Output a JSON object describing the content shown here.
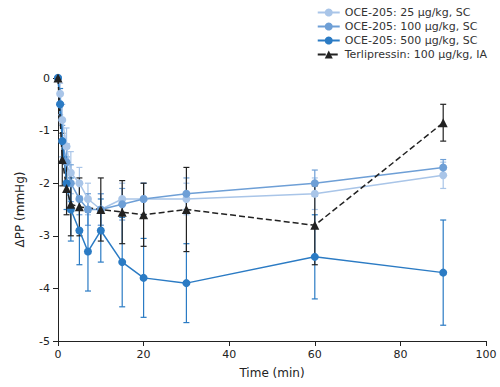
{
  "chart_data": {
    "type": "line",
    "x_label": "Time (min)",
    "y_label": "ΔPP (mmHg)",
    "xlim": [
      0,
      100
    ],
    "xticks": [
      0,
      20,
      40,
      60,
      80,
      100
    ],
    "ylim": [
      -5,
      0
    ],
    "yticks": [
      -5,
      -4,
      -3,
      -2,
      -1,
      0
    ],
    "grid": false,
    "legend": "top-right",
    "series": [
      {
        "name": "OCE-205: 25 µg/kg, SC",
        "color": "#a9c5e8",
        "marker": "circle",
        "line_style": "solid",
        "x": [
          0,
          0.5,
          1,
          2,
          3,
          5,
          7,
          10,
          15,
          20,
          30,
          60,
          90
        ],
        "values": [
          0,
          -0.3,
          -0.8,
          -1.3,
          -1.8,
          -2.0,
          -2.3,
          -2.5,
          -2.3,
          -2.3,
          -2.3,
          -2.2,
          -1.85
        ],
        "errors": [
          0,
          0.2,
          0.3,
          0.35,
          0.4,
          0.3,
          0.3,
          0.3,
          0.3,
          0.3,
          0.3,
          0.3,
          0.25
        ]
      },
      {
        "name": "OCE-205: 100 µg/kg, SC",
        "color": "#6e9fd6",
        "marker": "circle",
        "line_style": "solid",
        "x": [
          0,
          0.5,
          1,
          2,
          3,
          5,
          7,
          10,
          15,
          20,
          30,
          60,
          90
        ],
        "values": [
          0,
          -0.5,
          -1.2,
          -1.6,
          -2.0,
          -2.3,
          -2.5,
          -2.5,
          -2.4,
          -2.3,
          -2.2,
          -2.0,
          -1.7
        ],
        "errors": [
          0,
          0.2,
          0.3,
          0.35,
          0.35,
          0.3,
          0.3,
          0.3,
          0.3,
          0.3,
          0.3,
          0.25,
          0.15
        ]
      },
      {
        "name": "OCE-205: 500 µg/kg, SC",
        "color": "#2b7bc4",
        "marker": "circle",
        "line_style": "solid",
        "x": [
          0,
          0.5,
          1,
          2,
          3,
          5,
          7,
          10,
          15,
          20,
          30,
          60,
          90
        ],
        "values": [
          0,
          -0.5,
          -1.2,
          -2.0,
          -2.5,
          -2.9,
          -3.3,
          -2.9,
          -3.5,
          -3.8,
          -3.9,
          -3.4,
          -3.7
        ],
        "errors": [
          0,
          0.3,
          0.4,
          0.5,
          0.6,
          0.65,
          0.75,
          0.6,
          0.85,
          0.75,
          0.75,
          0.8,
          1.0
        ]
      },
      {
        "name": "Terlipressin: 100 µg/kg, IA",
        "color": "#222222",
        "marker": "triangle",
        "line_style": "dashed",
        "x": [
          0,
          1,
          2,
          3,
          5,
          10,
          15,
          20,
          30,
          60,
          90
        ],
        "values": [
          0,
          -1.55,
          -2.1,
          -2.4,
          -2.45,
          -2.5,
          -2.55,
          -2.6,
          -2.5,
          -2.8,
          -0.85
        ],
        "errors": [
          0,
          0.5,
          0.5,
          0.6,
          0.55,
          0.6,
          0.6,
          0.6,
          0.8,
          0.75,
          0.35
        ]
      }
    ]
  }
}
